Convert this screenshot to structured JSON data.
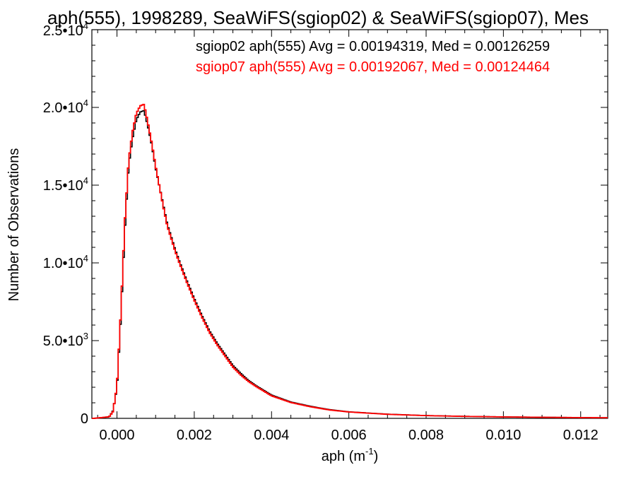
{
  "chart_data": {
    "type": "line",
    "title": "aph(555), 1998289, SeaWiFS(sgiop02) & SeaWiFS(sgiop07), Mes",
    "xlabel": "aph (m",
    "xlabel_exp": "-1",
    "xlabel_tail": ")",
    "ylabel": "Number of Observations",
    "xlim": [
      -0.00065,
      0.0127
    ],
    "ylim": [
      0,
      25000
    ],
    "legend_position": "top-right",
    "x_ticks": [
      {
        "value": 0.0,
        "label": "0.000"
      },
      {
        "value": 0.002,
        "label": "0.002"
      },
      {
        "value": 0.004,
        "label": "0.004"
      },
      {
        "value": 0.006,
        "label": "0.006"
      },
      {
        "value": 0.008,
        "label": "0.008"
      },
      {
        "value": 0.01,
        "label": "0.010"
      },
      {
        "value": 0.012,
        "label": "0.012"
      }
    ],
    "y_ticks": [
      {
        "value": 0,
        "mant": "0",
        "exp": ""
      },
      {
        "value": 5000,
        "mant": "5.0•10",
        "exp": "3"
      },
      {
        "value": 10000,
        "mant": "1.0•10",
        "exp": "4"
      },
      {
        "value": 15000,
        "mant": "1.5•10",
        "exp": "4"
      },
      {
        "value": 20000,
        "mant": "2.0•10",
        "exp": "4"
      },
      {
        "value": 25000,
        "mant": "2.5•10",
        "exp": "4"
      }
    ],
    "series": [
      {
        "name": "sgiop02 aph(555) Avg = 0.00194319, Med = 0.00126259",
        "color": "#000000",
        "x": [
          -0.0006,
          -0.0002,
          -0.0001,
          0.0,
          0.0001,
          0.0002,
          0.0003,
          0.0004,
          0.0005,
          0.0006,
          0.0007,
          0.0008,
          0.0009,
          0.001,
          0.0011,
          0.0012,
          0.0013,
          0.0014,
          0.0015,
          0.0016,
          0.0018,
          0.002,
          0.0022,
          0.0024,
          0.0026,
          0.0028,
          0.003,
          0.0032,
          0.0034,
          0.0036,
          0.0038,
          0.004,
          0.0045,
          0.005,
          0.0055,
          0.006,
          0.007,
          0.008,
          0.009,
          0.01,
          0.011,
          0.012,
          0.0127
        ],
        "y": [
          0,
          100,
          500,
          2000,
          6500,
          12000,
          16200,
          18000,
          19200,
          19700,
          19800,
          18800,
          17600,
          16100,
          14900,
          13700,
          12500,
          11700,
          10900,
          10200,
          8900,
          7700,
          6600,
          5600,
          4800,
          4100,
          3400,
          2900,
          2450,
          2100,
          1800,
          1500,
          1050,
          780,
          560,
          420,
          270,
          180,
          130,
          95,
          70,
          50,
          40
        ]
      },
      {
        "name": "sgiop07 aph(555) Avg = 0.00192067, Med = 0.00124464",
        "color": "#ff0000",
        "x": [
          -0.0006,
          -0.0002,
          -0.0001,
          0.0,
          0.0001,
          0.0002,
          0.0003,
          0.0004,
          0.0005,
          0.0006,
          0.0007,
          0.0008,
          0.0009,
          0.001,
          0.0011,
          0.0012,
          0.0013,
          0.0014,
          0.0015,
          0.0016,
          0.0018,
          0.002,
          0.0022,
          0.0024,
          0.0026,
          0.0028,
          0.003,
          0.0032,
          0.0034,
          0.0036,
          0.0038,
          0.004,
          0.0045,
          0.005,
          0.0055,
          0.006,
          0.007,
          0.008,
          0.009,
          0.01,
          0.011,
          0.012,
          0.0127
        ],
        "y": [
          0,
          100,
          450,
          2100,
          6800,
          12500,
          16500,
          18400,
          19600,
          20100,
          20200,
          19000,
          17700,
          16200,
          14900,
          13600,
          12400,
          11600,
          10800,
          10100,
          8800,
          7600,
          6500,
          5500,
          4700,
          4000,
          3300,
          2800,
          2380,
          2050,
          1750,
          1450,
          1020,
          750,
          540,
          410,
          260,
          175,
          125,
          92,
          68,
          48,
          38
        ]
      }
    ]
  }
}
